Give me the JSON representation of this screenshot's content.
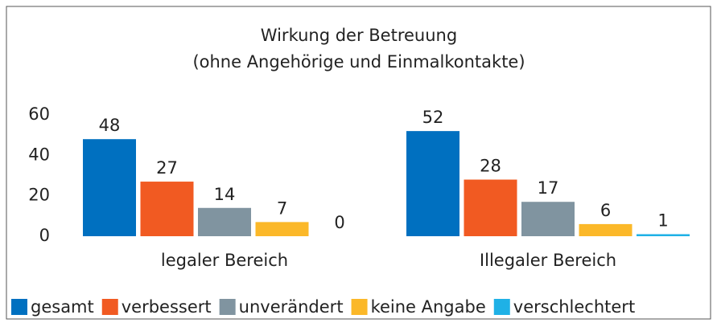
{
  "chart_data": {
    "type": "bar",
    "title": "Wirkung der Betreuung",
    "subtitle": "(ohne Angehörige und Einmalkontakte)",
    "categories": [
      "legaler Bereich",
      "Illegaler Bereich"
    ],
    "series": [
      {
        "name": "gesamt",
        "color": "#0070c0",
        "values": [
          48,
          52
        ]
      },
      {
        "name": "verbessert",
        "color": "#f15a22",
        "values": [
          27,
          28
        ]
      },
      {
        "name": "unverändert",
        "color": "#8094a0",
        "values": [
          14,
          17
        ]
      },
      {
        "name": "keine Angabe",
        "color": "#fbb829",
        "values": [
          7,
          6
        ]
      },
      {
        "name": "verschlechtert",
        "color": "#1fb1e6",
        "values": [
          0,
          1
        ]
      }
    ],
    "ylim": [
      0,
      60
    ],
    "yticks": [
      0,
      20,
      40,
      60
    ],
    "grid": false,
    "legend": "bottom"
  }
}
